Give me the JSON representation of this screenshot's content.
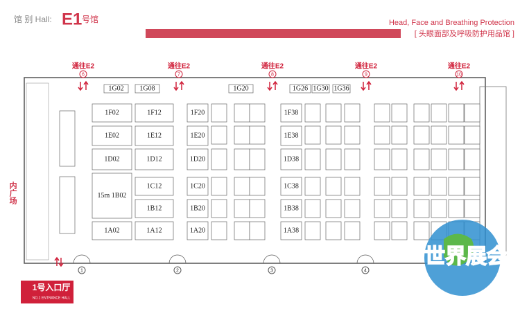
{
  "header": {
    "hall_prefix": "馆 别 Hall:",
    "hall": "E1",
    "hall_suffix": "号馆",
    "title_en": "Head, Face and Breathing Protection",
    "title_cn": "[ 头眼面部及呼吸防护用品馆 ]"
  },
  "passages": [
    {
      "label": "通往E2",
      "number": "6"
    },
    {
      "label": "通往E2",
      "number": "7"
    },
    {
      "label": "通往E2",
      "number": "8"
    },
    {
      "label": "通往E2",
      "number": "9"
    },
    {
      "label": "通往E2",
      "number": "10"
    }
  ],
  "entrances": [
    "1",
    "2",
    "3",
    "4"
  ],
  "booths": [
    {
      "label": "1F02"
    },
    {
      "label": "1E02"
    },
    {
      "label": "1D02"
    },
    {
      "label": "15m 1B02"
    },
    {
      "label": "1A02"
    },
    {
      "label": "1F12"
    },
    {
      "label": "1E12"
    },
    {
      "label": "1D12"
    },
    {
      "label": "1C12"
    },
    {
      "label": "1B12"
    },
    {
      "label": "1A12"
    },
    {
      "label": "1F20"
    },
    {
      "label": "1E20"
    },
    {
      "label": "1D20"
    },
    {
      "label": "1C20"
    },
    {
      "label": "1B20"
    },
    {
      "label": "1A20"
    },
    {
      "label": "1F38"
    },
    {
      "label": "1E38"
    },
    {
      "label": "1D38"
    },
    {
      "label": "1C38"
    },
    {
      "label": "1B38"
    },
    {
      "label": "1A38"
    },
    {
      "label": "1G02"
    },
    {
      "label": "1G08"
    },
    {
      "label": "1G20"
    },
    {
      "label": "1G26"
    },
    {
      "label": "1G30"
    },
    {
      "label": "1G36"
    }
  ],
  "side_label": "内广场",
  "entrance_hall": {
    "title": "1号入口厅",
    "subtitle": "NO.1 ENTRANCE HALL"
  },
  "watermark": "世界展会"
}
